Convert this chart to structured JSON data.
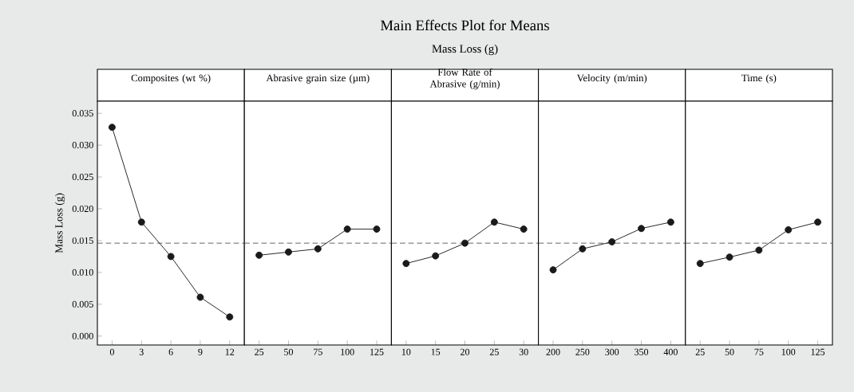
{
  "chart_data": [
    {
      "type": "line",
      "title": "Composites (wt %)",
      "ylabel": "Mass Loss (g)",
      "categories": [
        "0",
        "3",
        "6",
        "9",
        "12"
      ],
      "values": [
        0.0328,
        0.0179,
        0.0125,
        0.0061,
        0.003
      ],
      "color": "#1a1a1a",
      "marker": "circle",
      "line_style": "solid",
      "ylim": [
        -0.0014,
        0.0369
      ],
      "yticks": [
        {
          "value": 0,
          "label": "0.000"
        },
        0.005,
        {
          "value": 0.01,
          "label": "0.010"
        },
        0.015,
        {
          "value": 0.02,
          "label": "0.020"
        },
        0.025,
        {
          "value": 0.03,
          "label": "0.030"
        },
        0.035
      ],
      "ref_lines": [
        {
          "axis": "y",
          "value": 0.0146,
          "line_style": "dashed"
        }
      ]
    },
    {
      "type": "line",
      "title": "Abrasive grain size (µm)",
      "categories": [
        "25",
        "50",
        "75",
        "100",
        "125"
      ],
      "values": [
        0.0127,
        0.0132,
        0.0137,
        0.0168,
        0.0168
      ],
      "color": "#1a1a1a",
      "marker": "circle",
      "line_style": "solid",
      "ylim": [
        -0.0014,
        0.0369
      ],
      "tick_labels": "x",
      "ref_lines": [
        {
          "axis": "y",
          "value": 0.0146,
          "line_style": "dashed"
        }
      ]
    },
    {
      "type": "line",
      "title": "Flow Rate of Abrasive (g/min)",
      "categories": [
        "10",
        "15",
        "20",
        "25",
        "30"
      ],
      "values": [
        0.0114,
        0.0126,
        0.0146,
        0.0179,
        0.0168
      ],
      "color": "#1a1a1a",
      "marker": "circle",
      "line_style": "solid",
      "ylim": [
        -0.0014,
        0.0369
      ],
      "tick_labels": "x",
      "ref_lines": [
        {
          "axis": "y",
          "value": 0.0146,
          "line_style": "dashed"
        }
      ]
    },
    {
      "type": "line",
      "title": "Velocity (m/min)",
      "categories": [
        "200",
        "250",
        "300",
        "350",
        "400"
      ],
      "values": [
        0.0104,
        0.0137,
        0.0148,
        0.0169,
        0.0179
      ],
      "color": "#1a1a1a",
      "marker": "circle",
      "line_style": "solid",
      "ylim": [
        -0.0014,
        0.0369
      ],
      "tick_labels": "x",
      "ref_lines": [
        {
          "axis": "y",
          "value": 0.0146,
          "line_style": "dashed"
        }
      ]
    },
    {
      "type": "line",
      "title": "Time (s)",
      "categories": [
        "25",
        "50",
        "75",
        "100",
        "125"
      ],
      "values": [
        0.0114,
        0.0124,
        0.0135,
        0.0167,
        0.0179
      ],
      "color": "#1a1a1a",
      "marker": "circle",
      "line_style": "solid",
      "ylim": [
        -0.0014,
        0.0369
      ],
      "tick_labels": "x",
      "ref_lines": [
        {
          "axis": "y",
          "value": 0.0146,
          "line_style": "dashed"
        }
      ]
    },
    {
      "type": "other",
      "title": "Main Effects Plot for Means",
      "subtitle": "Mass Loss (g)"
    }
  ]
}
